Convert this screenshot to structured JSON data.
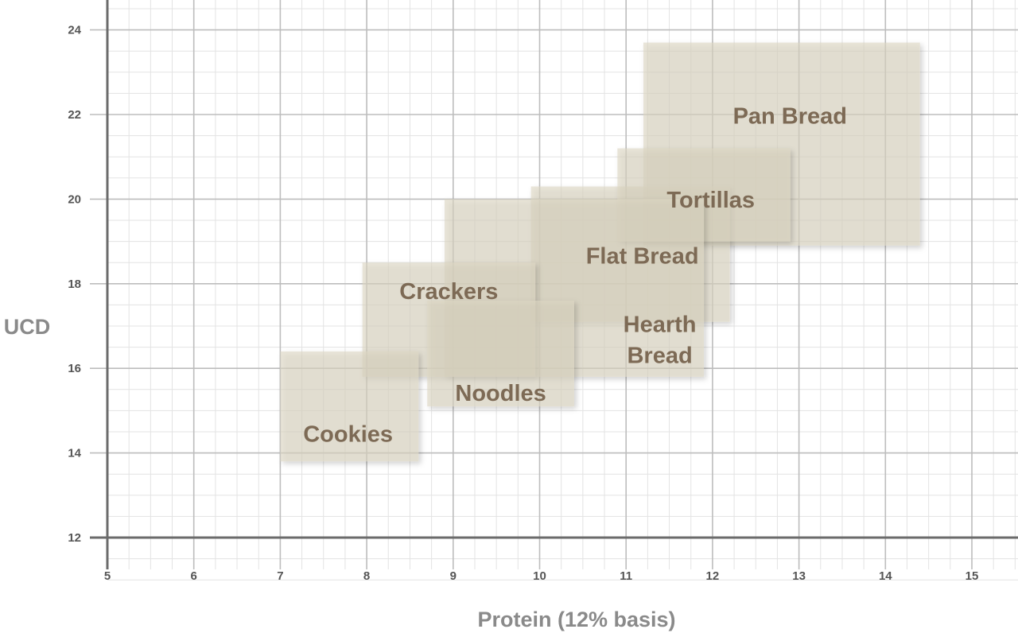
{
  "chart_data": {
    "type": "range-box",
    "title": "",
    "xlabel": "Protein (12% basis)",
    "ylabel": "UCD",
    "xlim": [
      5,
      15.5
    ],
    "ylim": [
      12,
      24.6
    ],
    "x_ticks": [
      5,
      6,
      7,
      8,
      9,
      10,
      11,
      12,
      13,
      14,
      15
    ],
    "y_ticks": [
      12,
      14,
      16,
      18,
      20,
      22,
      24
    ],
    "x_minor_step": 0.25,
    "y_minor_step": 0.5,
    "grid": true,
    "regions": [
      {
        "name": "Pan Bread",
        "label_lines": [
          "Pan Bread"
        ],
        "x_min": 11.2,
        "x_max": 14.4,
        "y_min": 18.9,
        "y_max": 23.7
      },
      {
        "name": "Flat Bread",
        "label_lines": [
          "Flat Bread"
        ],
        "x_min": 9.9,
        "x_max": 12.2,
        "y_min": 17.1,
        "y_max": 20.3
      },
      {
        "name": "Tortillas",
        "label_lines": [
          "Tortillas"
        ],
        "x_min": 10.9,
        "x_max": 12.9,
        "y_min": 19.0,
        "y_max": 21.2
      },
      {
        "name": "Hearth Bread",
        "label_lines": [
          "Hearth",
          "Bread"
        ],
        "x_min": 8.9,
        "x_max": 11.9,
        "y_min": 15.8,
        "y_max": 20.0
      },
      {
        "name": "Crackers",
        "label_lines": [
          "Crackers"
        ],
        "x_min": 7.95,
        "x_max": 9.95,
        "y_min": 15.8,
        "y_max": 18.5
      },
      {
        "name": "Noodles",
        "label_lines": [
          "Noodles"
        ],
        "x_min": 8.7,
        "x_max": 10.4,
        "y_min": 15.1,
        "y_max": 17.6
      },
      {
        "name": "Cookies",
        "label_lines": [
          "Cookies"
        ],
        "x_min": 7.0,
        "x_max": 8.6,
        "y_min": 13.8,
        "y_max": 16.4
      }
    ],
    "colors": {
      "box_fill": "#ddd7c3",
      "box_opacity": 0.62,
      "label": "#7d6a55",
      "grid_major": "#bdbdbd",
      "grid_minor": "#e3e3e3",
      "axis": "#6b6b6b",
      "tick_label": "#555555",
      "axis_title": "#8a8a8a"
    }
  }
}
